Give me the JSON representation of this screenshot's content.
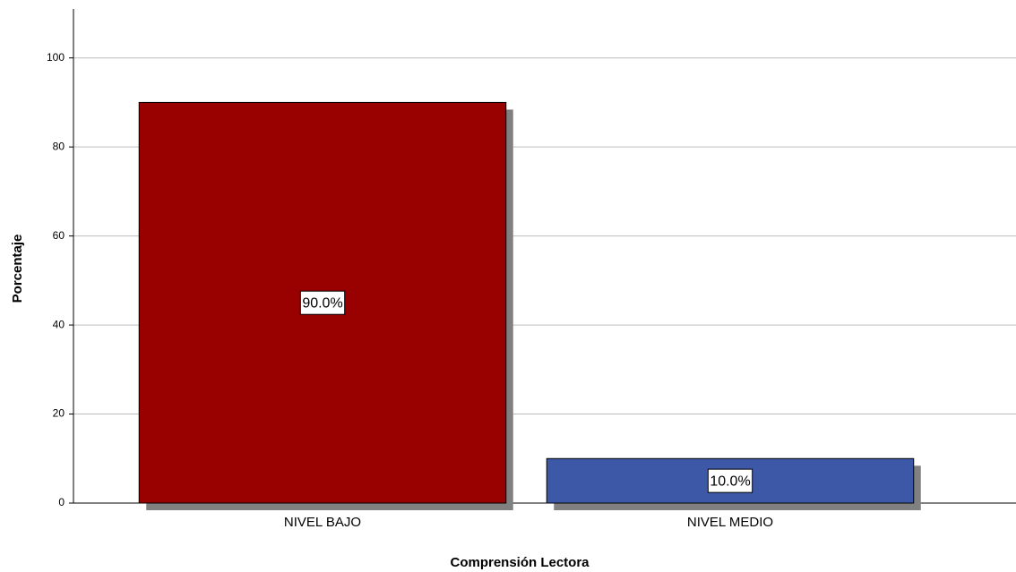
{
  "chart_data": {
    "type": "bar",
    "x_label": "Comprensión Lectora",
    "y_label": "Porcentaje",
    "categories": [
      "NIVEL BAJO",
      "NIVEL MEDIO"
    ],
    "values": [
      90,
      10
    ],
    "value_labels": [
      "90.0%",
      "10.0%"
    ],
    "colors": [
      "#990000",
      "#3e58a8"
    ],
    "ylim": [
      0,
      111
    ],
    "yticks": [
      0,
      20,
      40,
      60,
      80,
      100
    ],
    "grid": true
  }
}
